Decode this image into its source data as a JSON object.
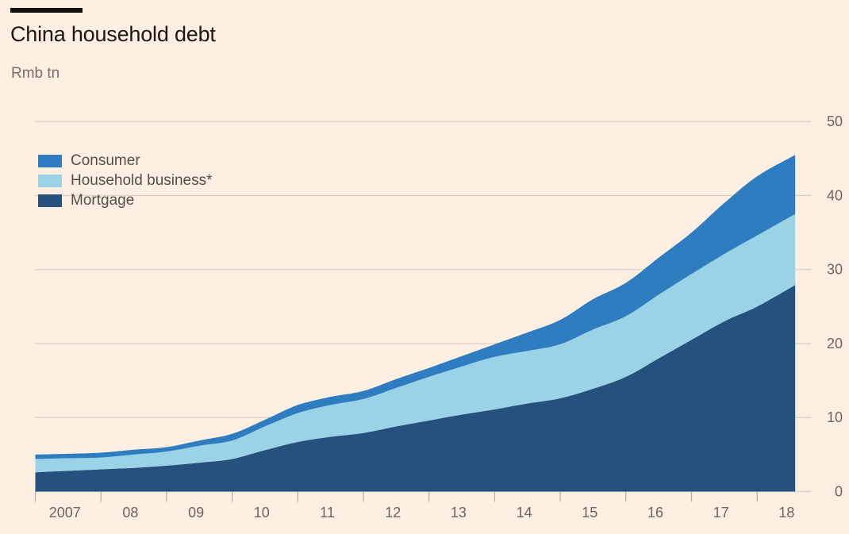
{
  "header": {
    "title": "China household debt",
    "subtitle": "Rmb tn"
  },
  "chart_data": {
    "type": "area",
    "stacked": true,
    "title": "China household debt",
    "unit_label": "Rmb tn",
    "x": [
      2007,
      2007.5,
      2008,
      2008.5,
      2009,
      2009.5,
      2010,
      2010.5,
      2011,
      2011.5,
      2012,
      2012.5,
      2013,
      2013.5,
      2014,
      2014.5,
      2015,
      2015.5,
      2016,
      2016.5,
      2017,
      2017.5,
      2018,
      2018.58
    ],
    "series": [
      {
        "name": "Mortgage",
        "color": "#25517f",
        "values": [
          2.6,
          2.8,
          3.0,
          3.2,
          3.5,
          3.9,
          4.4,
          5.6,
          6.7,
          7.4,
          7.9,
          8.8,
          9.6,
          10.4,
          11.1,
          11.9,
          12.6,
          13.9,
          15.5,
          18.0,
          20.5,
          23.0,
          25.0,
          27.9
        ]
      },
      {
        "name": "Household business*",
        "color": "#9ad3e6",
        "values": [
          1.8,
          1.7,
          1.6,
          1.8,
          1.9,
          2.3,
          2.5,
          3.2,
          3.9,
          4.3,
          4.6,
          5.2,
          5.9,
          6.5,
          7.1,
          7.1,
          7.3,
          8.0,
          8.2,
          8.6,
          8.9,
          9.1,
          9.6,
          9.6
        ]
      },
      {
        "name": "Consumer",
        "color": "#2e7dc0",
        "values": [
          0.6,
          0.6,
          0.65,
          0.65,
          0.6,
          0.7,
          0.9,
          0.9,
          1.1,
          1.1,
          1.1,
          1.2,
          1.2,
          1.4,
          1.7,
          2.5,
          3.3,
          4.1,
          4.5,
          5.0,
          5.6,
          6.9,
          8.0,
          8.0
        ]
      }
    ],
    "legend_order_top_to_bottom": [
      "Consumer",
      "Household business*",
      "Mortgage"
    ],
    "legend_position": "top-left",
    "xlim": [
      2007,
      2018.58
    ],
    "ylim": [
      0,
      50
    ],
    "yticks": [
      0,
      10,
      20,
      30,
      40,
      50
    ],
    "ytick_labels": [
      "0",
      "10",
      "20",
      "30",
      "40",
      "50"
    ],
    "xticks": [
      2007,
      2008,
      2009,
      2010,
      2011,
      2012,
      2013,
      2014,
      2015,
      2016,
      2017,
      2018
    ],
    "xtick_labels": [
      "2007",
      "08",
      "09",
      "10",
      "11",
      "12",
      "13",
      "14",
      "15",
      "16",
      "17",
      "18"
    ],
    "grid": "horizontal",
    "colors": {
      "background": "#fdf0e3",
      "gridline": "#d9d0c6",
      "tick": "#b7afa5",
      "axis_text": "#6b655e",
      "title_text": "#1d1812",
      "subtitle_text": "#796f66",
      "title_rule": "#12100d"
    }
  }
}
